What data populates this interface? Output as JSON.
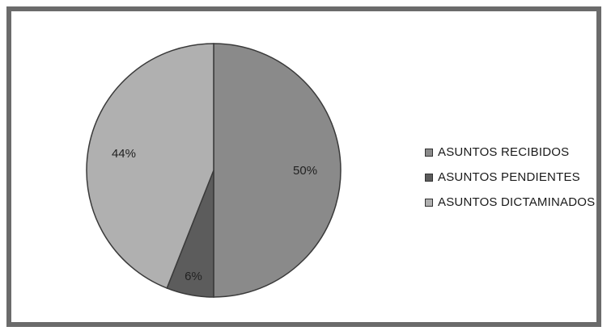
{
  "chart_data": {
    "type": "pie",
    "categories": [
      "ASUNTOS RECIBIDOS",
      "ASUNTOS PENDIENTES",
      "ASUNTOS DICTAMINADOS"
    ],
    "values": [
      50,
      6,
      44
    ],
    "labels": [
      "50%",
      "6%",
      "44%"
    ],
    "colors": [
      "#8a8a8a",
      "#5c5c5c",
      "#b0b0b0"
    ],
    "start_angle_deg": 0,
    "direction": "clockwise",
    "legend_position": "right"
  }
}
